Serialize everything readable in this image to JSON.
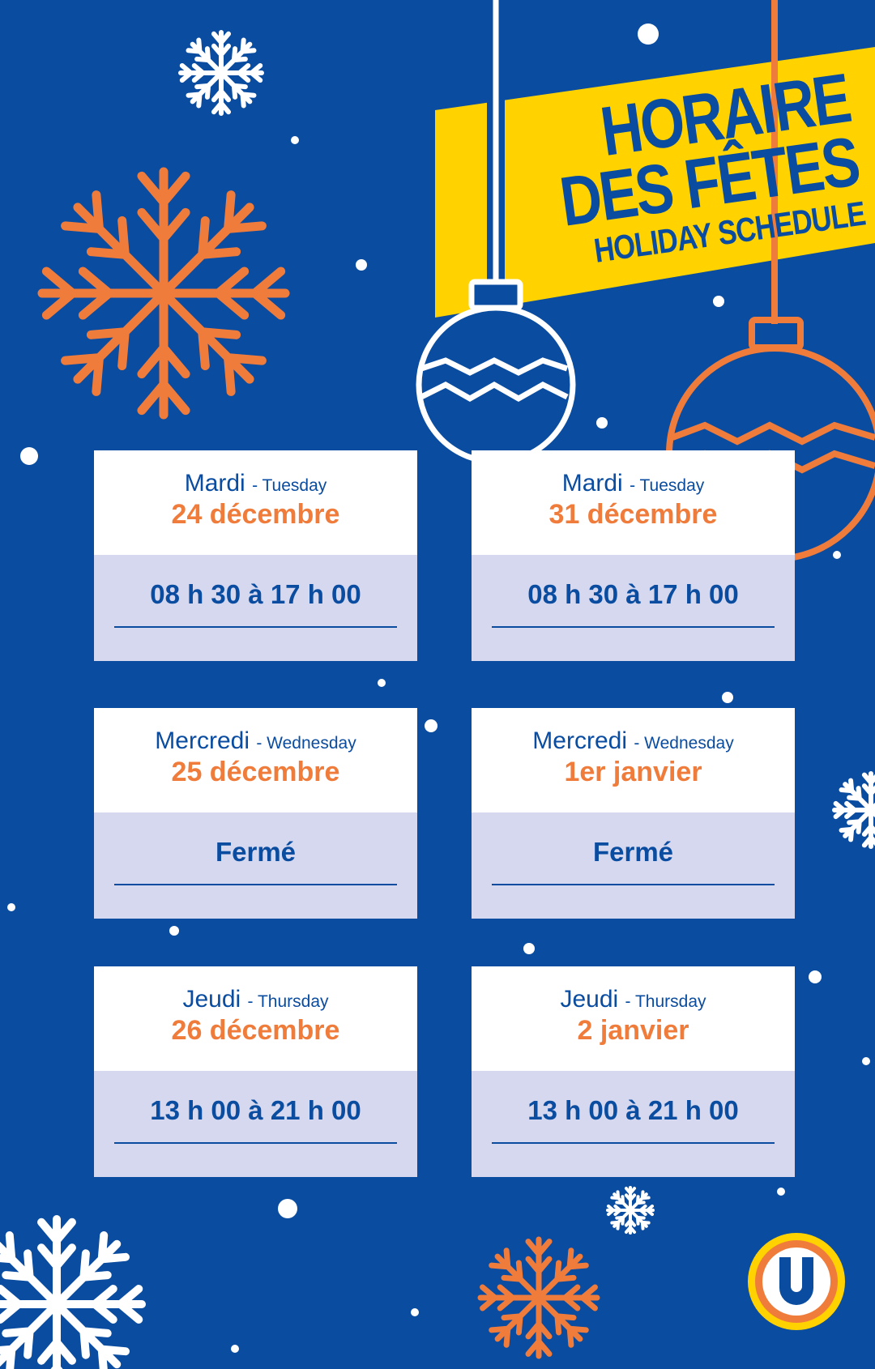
{
  "header": {
    "line1": "HORAIRE",
    "line2": "DES FÊTES",
    "line3": "HOLIDAY SCHEDULE"
  },
  "colors": {
    "background": "#0a4ca0",
    "accent_orange": "#f07c3c",
    "banner_yellow": "#ffd200",
    "hours_panel": "#d5d8ee"
  },
  "schedule": [
    {
      "day_fr": "Mardi",
      "day_en": "- Tuesday",
      "date": "24 décembre",
      "hours": "08 h 30 à 17 h 00"
    },
    {
      "day_fr": "Mardi",
      "day_en": "- Tuesday",
      "date": "31 décembre",
      "hours": "08 h 30 à 17 h 00"
    },
    {
      "day_fr": "Mercredi",
      "day_en": "- Wednesday",
      "date": "25 décembre",
      "hours": "Fermé"
    },
    {
      "day_fr": "Mercredi",
      "day_en": "- Wednesday",
      "date": "1er janvier",
      "hours": "Fermé"
    },
    {
      "day_fr": "Jeudi",
      "day_en": "- Thursday",
      "date": "26 décembre",
      "hours": "13 h 00 à 21 h 00"
    },
    {
      "day_fr": "Jeudi",
      "day_en": "- Thursday",
      "date": "2 janvier",
      "hours": "13 h 00 à 21 h 00"
    }
  ],
  "logo": {
    "letter": "U",
    "icon": "u-logo-icon"
  }
}
